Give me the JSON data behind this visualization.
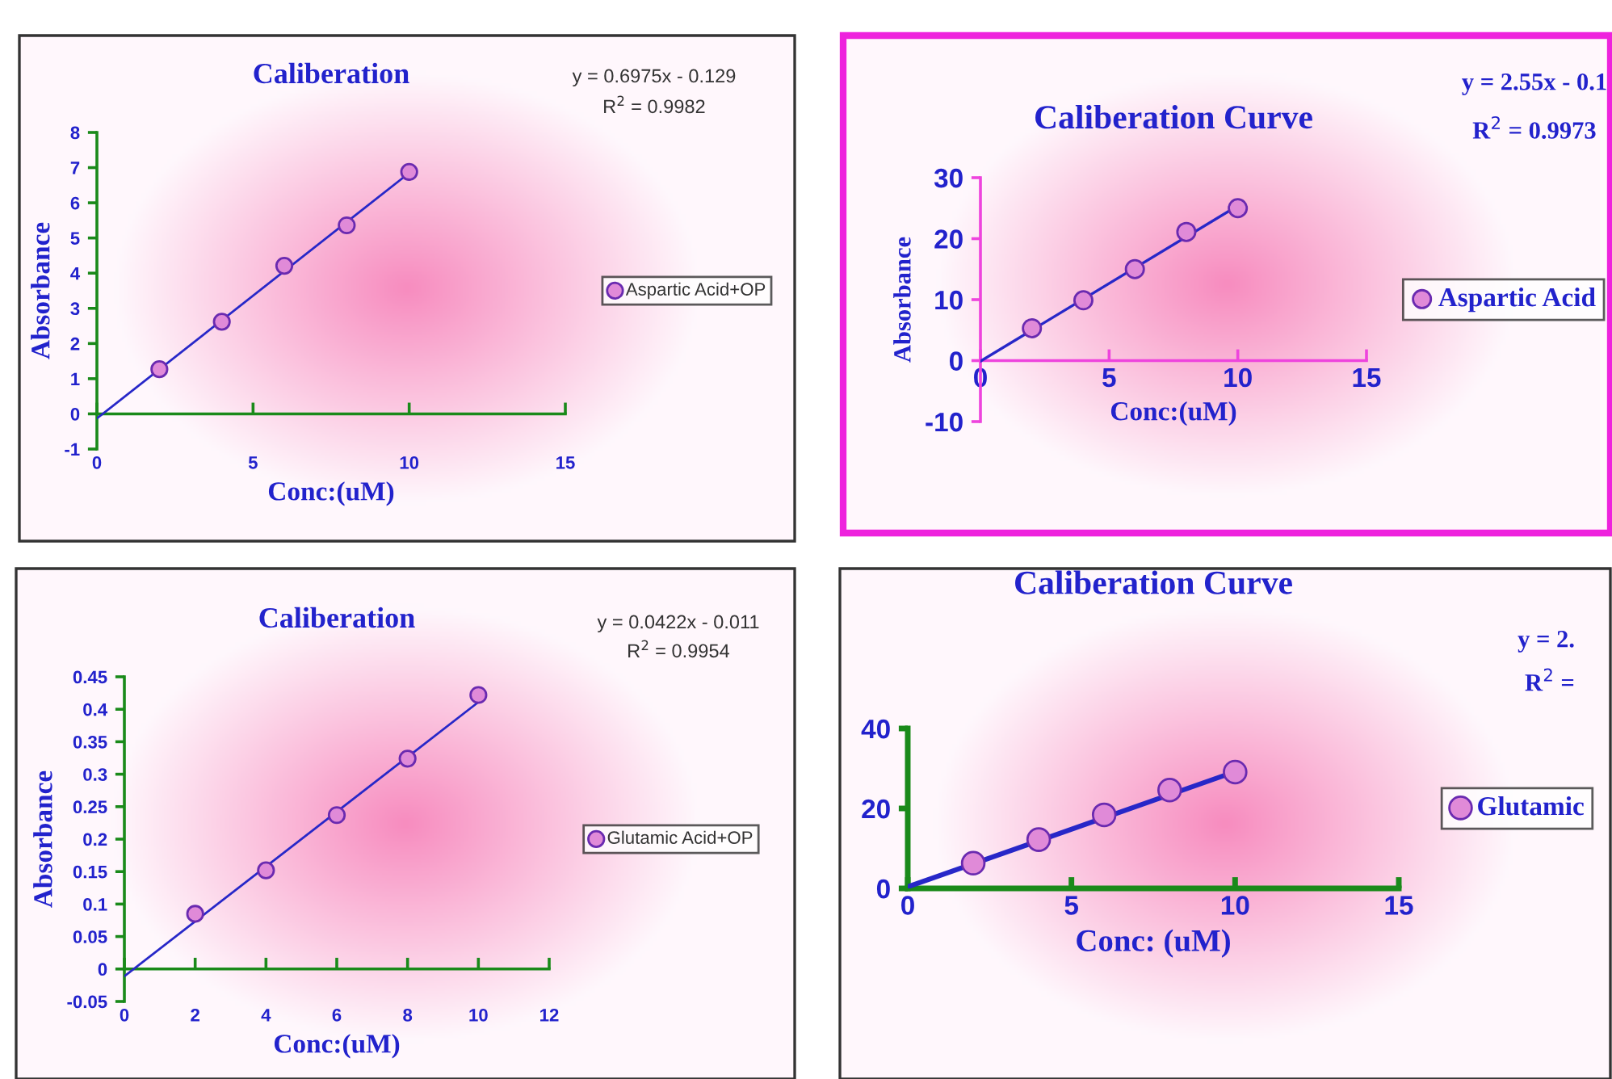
{
  "chart_data": [
    {
      "type": "scatter",
      "title": "Caliberation",
      "xlabel": "Conc:(uM)",
      "ylabel": "Absorbance",
      "xlim": [
        0,
        15
      ],
      "ylim": [
        -1,
        8
      ],
      "xticks": [
        0,
        5,
        10,
        15
      ],
      "yticks": [
        -1,
        0,
        1,
        2,
        3,
        4,
        5,
        6,
        7,
        8
      ],
      "legend": "right",
      "marker": "circle",
      "series": [
        {
          "name": "Aspartic Acid+OP",
          "color": "#e08ad8",
          "x": [
            2,
            4,
            6,
            8,
            10
          ],
          "values": [
            1.27,
            2.62,
            4.21,
            5.36,
            6.88
          ]
        },
        {
          "type": "line",
          "marker": "none",
          "color": "#2727c8",
          "x": [
            0,
            10
          ],
          "values": [
            -0.13,
            6.85
          ]
        }
      ],
      "annotations": [
        "y = 0.6975x - 0.129",
        "R$^{2}$ = 0.9982"
      ]
    },
    {
      "type": "scatter",
      "title": "Caliberation Curve",
      "xlabel": "Conc:(uM)",
      "ylabel": "Absorbance",
      "xlim": [
        0,
        15
      ],
      "ylim": [
        -10,
        30
      ],
      "xticks": [
        0,
        5,
        10,
        15
      ],
      "yticks": [
        -10,
        0,
        10,
        20,
        30
      ],
      "legend": "right",
      "marker": "circle",
      "series": [
        {
          "name": "Aspartic Acid",
          "color": "#e08ad8",
          "x": [
            2,
            4,
            6,
            8,
            10
          ],
          "values": [
            5.3,
            9.9,
            15.0,
            21.1,
            25.0
          ]
        },
        {
          "type": "line",
          "marker": "none",
          "color": "#2727c8",
          "x": [
            0,
            10
          ],
          "values": [
            -0.1,
            25.4
          ]
        }
      ],
      "annotations": [
        "y = 2.55x - 0.1",
        "R$^{2}$ = 0.9973"
      ]
    },
    {
      "type": "scatter",
      "title": "Caliberation",
      "xlabel": "Conc:(uM)",
      "ylabel": "Absorbance",
      "xlim": [
        0,
        12
      ],
      "ylim": [
        -0.05,
        0.45
      ],
      "xticks": [
        0,
        2,
        4,
        6,
        8,
        10,
        12
      ],
      "yticks": [
        -0.05,
        0,
        0.05,
        0.1,
        0.15,
        0.2,
        0.25,
        0.3,
        0.35,
        0.4,
        0.45
      ],
      "legend": "right",
      "marker": "circle",
      "series": [
        {
          "name": "Glutamic Acid+OP",
          "color": "#e08ad8",
          "x": [
            2,
            4,
            6,
            8,
            10
          ],
          "values": [
            0.085,
            0.152,
            0.237,
            0.324,
            0.422
          ]
        },
        {
          "type": "line",
          "marker": "none",
          "color": "#2727c8",
          "x": [
            0,
            10
          ],
          "values": [
            -0.011,
            0.411
          ]
        }
      ],
      "annotations": [
        "y = 0.0422x - 0.011",
        "R$^{2}$ = 0.9954"
      ]
    },
    {
      "type": "scatter",
      "title": "Caliberation Curve",
      "xlabel": "Conc: (uM)",
      "xlim": [
        0,
        15
      ],
      "ylim": [
        0,
        40
      ],
      "xticks": [
        0,
        5,
        10,
        15
      ],
      "yticks": [
        0,
        20,
        40
      ],
      "legend": "right",
      "marker": "circle",
      "series": [
        {
          "name": "Glutamic",
          "color": "#e08ad8",
          "x": [
            2,
            4,
            6,
            8,
            10
          ],
          "values": [
            6.3,
            12.2,
            18.4,
            24.6,
            29.1
          ]
        },
        {
          "type": "line",
          "marker": "none",
          "color": "#2727c8",
          "x": [
            0,
            10
          ],
          "values": [
            0.4,
            29.2
          ]
        }
      ],
      "annotations": [
        "y = 2.",
        "R$^{2}$ ="
      ]
    }
  ]
}
